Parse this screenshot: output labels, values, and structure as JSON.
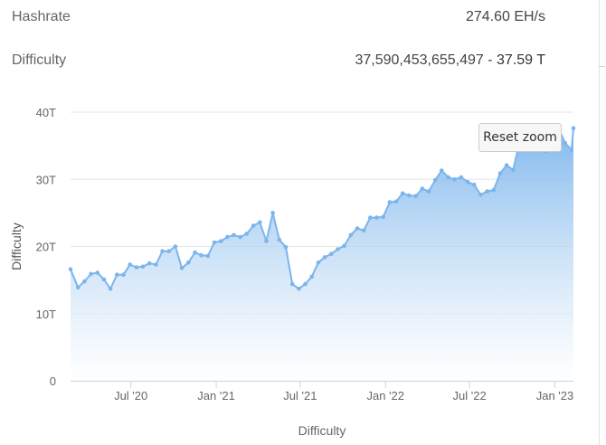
{
  "stats": {
    "hashrate_label": "Hashrate",
    "hashrate_value": "274.60 EH/s",
    "difficulty_label": "Difficulty",
    "difficulty_full": "37,590,453,655,497",
    "difficulty_sep": " - ",
    "difficulty_short": "37.59 T"
  },
  "reset_zoom_label": "Reset zoom",
  "colors": {
    "line": "#7cb5ec",
    "area_top": "#7cb5ec",
    "area_bottom": "#ffffff",
    "grid": "#e6e6e6"
  },
  "chart_data": {
    "type": "area",
    "ylabel": "Difficulty",
    "xlabel": "Difficulty",
    "ylim": [
      0,
      40
    ],
    "y_unit": "T",
    "yticks": [
      {
        "value": 0,
        "label": "0"
      },
      {
        "value": 10,
        "label": "10T"
      },
      {
        "value": 20,
        "label": "20T"
      },
      {
        "value": 30,
        "label": "30T"
      },
      {
        "value": 40,
        "label": "40T"
      }
    ],
    "xlim": [
      "2020-02-22",
      "2023-02-10"
    ],
    "xticks": [
      {
        "date": "2020-07-01",
        "label": "Jul '20"
      },
      {
        "date": "2021-01-01",
        "label": "Jan '21"
      },
      {
        "date": "2021-07-01",
        "label": "Jul '21"
      },
      {
        "date": "2022-01-01",
        "label": "Jan '22"
      },
      {
        "date": "2022-07-01",
        "label": "Jul '22"
      },
      {
        "date": "2023-01-01",
        "label": "Jan '23"
      }
    ],
    "grid": true,
    "series": [
      {
        "values": [
          [
            "2020-02-22",
            16.6
          ],
          [
            "2020-03-09",
            13.9
          ],
          [
            "2020-03-23",
            14.8
          ],
          [
            "2020-04-06",
            15.9
          ],
          [
            "2020-04-20",
            16.1
          ],
          [
            "2020-05-04",
            15.1
          ],
          [
            "2020-05-18",
            13.7
          ],
          [
            "2020-06-01",
            15.8
          ],
          [
            "2020-06-15",
            15.8
          ],
          [
            "2020-06-29",
            17.3
          ],
          [
            "2020-07-13",
            16.9
          ],
          [
            "2020-07-27",
            17.0
          ],
          [
            "2020-08-10",
            17.5
          ],
          [
            "2020-08-24",
            17.3
          ],
          [
            "2020-09-07",
            19.3
          ],
          [
            "2020-09-21",
            19.3
          ],
          [
            "2020-10-05",
            20.0
          ],
          [
            "2020-10-19",
            16.8
          ],
          [
            "2020-11-02",
            17.6
          ],
          [
            "2020-11-16",
            19.1
          ],
          [
            "2020-11-30",
            18.7
          ],
          [
            "2020-12-14",
            18.6
          ],
          [
            "2020-12-28",
            20.6
          ],
          [
            "2021-01-11",
            20.8
          ],
          [
            "2021-01-25",
            21.4
          ],
          [
            "2021-02-08",
            21.7
          ],
          [
            "2021-02-22",
            21.4
          ],
          [
            "2021-03-08",
            21.9
          ],
          [
            "2021-03-22",
            23.1
          ],
          [
            "2021-04-05",
            23.6
          ],
          [
            "2021-04-19",
            20.8
          ],
          [
            "2021-05-03",
            25.0
          ],
          [
            "2021-05-17",
            21.0
          ],
          [
            "2021-05-31",
            19.9
          ],
          [
            "2021-06-14",
            14.4
          ],
          [
            "2021-06-28",
            13.7
          ],
          [
            "2021-07-12",
            14.4
          ],
          [
            "2021-07-26",
            15.5
          ],
          [
            "2021-08-09",
            17.6
          ],
          [
            "2021-08-23",
            18.4
          ],
          [
            "2021-09-06",
            18.9
          ],
          [
            "2021-09-20",
            19.6
          ],
          [
            "2021-10-04",
            20.1
          ],
          [
            "2021-10-18",
            21.7
          ],
          [
            "2021-11-01",
            22.7
          ],
          [
            "2021-11-15",
            22.4
          ],
          [
            "2021-11-29",
            24.3
          ],
          [
            "2021-12-13",
            24.3
          ],
          [
            "2021-12-27",
            24.4
          ],
          [
            "2022-01-10",
            26.6
          ],
          [
            "2022-01-24",
            26.7
          ],
          [
            "2022-02-07",
            27.9
          ],
          [
            "2022-02-21",
            27.6
          ],
          [
            "2022-03-07",
            27.5
          ],
          [
            "2022-03-21",
            28.6
          ],
          [
            "2022-04-04",
            28.2
          ],
          [
            "2022-04-18",
            29.9
          ],
          [
            "2022-05-02",
            31.3
          ],
          [
            "2022-05-16",
            30.3
          ],
          [
            "2022-05-30",
            30.0
          ],
          [
            "2022-06-13",
            30.3
          ],
          [
            "2022-06-27",
            29.6
          ],
          [
            "2022-07-11",
            29.2
          ],
          [
            "2022-07-25",
            27.7
          ],
          [
            "2022-08-08",
            28.2
          ],
          [
            "2022-08-22",
            28.4
          ],
          [
            "2022-09-05",
            30.9
          ],
          [
            "2022-09-19",
            32.1
          ],
          [
            "2022-10-03",
            31.4
          ],
          [
            "2022-10-17",
            35.6
          ],
          [
            "2022-10-31",
            36.8
          ],
          [
            "2022-11-14",
            36.8
          ],
          [
            "2022-11-28",
            36.8
          ],
          [
            "2022-12-12",
            34.2
          ],
          [
            "2022-12-26",
            35.4
          ],
          [
            "2023-01-09",
            37.6
          ],
          [
            "2023-01-23",
            35.4
          ],
          [
            "2023-02-06",
            34.4
          ],
          [
            "2023-02-10",
            37.6
          ]
        ]
      }
    ]
  }
}
